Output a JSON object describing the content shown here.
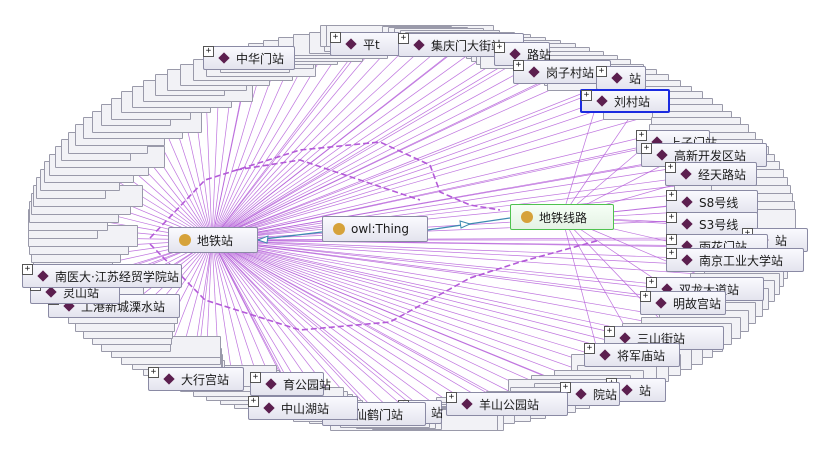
{
  "graph": {
    "root": "owl:Thing",
    "class_station": "地铁站",
    "class_line": "地铁线路",
    "expand_glyph": "+",
    "individuals": [
      {
        "key": "zhonghuamen",
        "label": "中华门站"
      },
      {
        "key": "pingt",
        "label": "平t"
      },
      {
        "key": "jiqingmen",
        "label": "集庆门大街站"
      },
      {
        "key": "lu_top",
        "label": "路站"
      },
      {
        "key": "gangzicun",
        "label": "岗子村站"
      },
      {
        "key": "zhan_top",
        "label": "站"
      },
      {
        "key": "liucun",
        "label": "刘村站"
      },
      {
        "key": "shangzimen",
        "label": "上子门站"
      },
      {
        "key": "gaoxin",
        "label": "高新开发区站"
      },
      {
        "key": "jingtianlu",
        "label": "经天路站"
      },
      {
        "key": "s8",
        "label": "S8号线"
      },
      {
        "key": "s3",
        "label": "S3号线"
      },
      {
        "key": "zhan_right",
        "label": "站"
      },
      {
        "key": "yuhuamen",
        "label": "雨花门站"
      },
      {
        "key": "nangongye",
        "label": "南京工业大学站"
      },
      {
        "key": "shuanglong",
        "label": "双龙大道站"
      },
      {
        "key": "minggugong",
        "label": "明故宫站"
      },
      {
        "key": "sanshanjie",
        "label": "三山街站"
      },
      {
        "key": "jiangjunmiao",
        "label": "将军庙站"
      },
      {
        "key": "zhan_br",
        "label": "站"
      },
      {
        "key": "yuan_bottom",
        "label": "院站"
      },
      {
        "key": "yangshan",
        "label": "羊山公园站"
      },
      {
        "key": "zhan_bottom",
        "label": "站"
      },
      {
        "key": "xianhemen",
        "label": "仙鹤门站"
      },
      {
        "key": "zhongshanhu",
        "label": "中山湖站"
      },
      {
        "key": "tiyugongyuan",
        "label": "育公园站"
      },
      {
        "key": "daxinggong",
        "label": "大行宫站"
      },
      {
        "key": "lishui",
        "label": "工港新城溧水站"
      },
      {
        "key": "lingshan",
        "label": "灵山站"
      },
      {
        "key": "nanyi",
        "label": "南医大·江苏经贸学院站"
      }
    ]
  }
}
